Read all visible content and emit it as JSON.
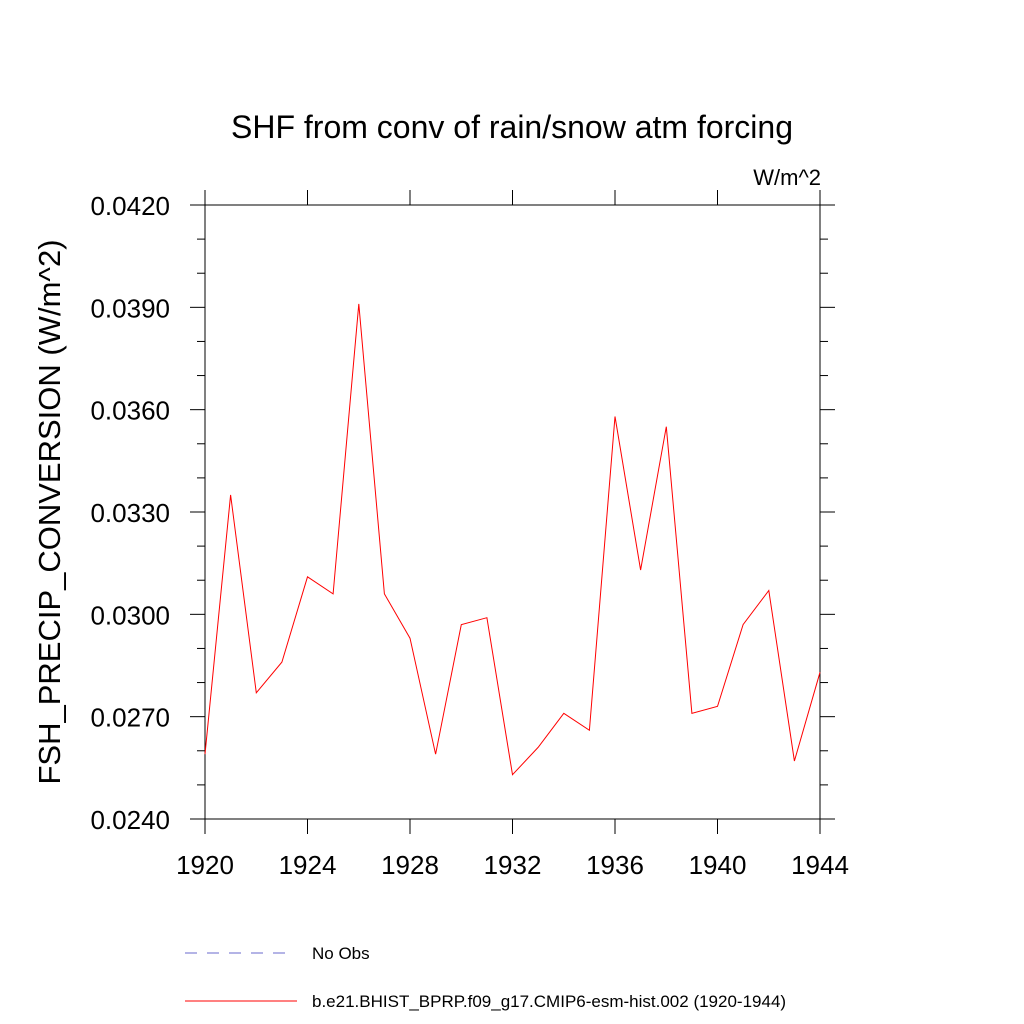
{
  "chart_data": {
    "type": "line",
    "title": "SHF from conv of rain/snow atm forcing",
    "units_label": "W/m^2",
    "ylabel": "FSH_PRECIP_CONVERSION  (W/m^2)",
    "xlabel": "",
    "xlim": [
      1920,
      1944
    ],
    "ylim": [
      0.024,
      0.042
    ],
    "x_ticks": [
      "1920",
      "1924",
      "1928",
      "1932",
      "1936",
      "1940",
      "1944"
    ],
    "y_ticks": [
      "0.0240",
      "0.0270",
      "0.0300",
      "0.0330",
      "0.0360",
      "0.0390",
      "0.0420"
    ],
    "grid": false,
    "legend_position": "bottom",
    "colors": {
      "model": "#ff0000",
      "obs": "#6a6acd"
    },
    "x": [
      1920,
      1921,
      1922,
      1923,
      1924,
      1925,
      1926,
      1927,
      1928,
      1929,
      1930,
      1931,
      1932,
      1933,
      1934,
      1935,
      1936,
      1937,
      1938,
      1939,
      1940,
      1941,
      1942,
      1943,
      1944
    ],
    "series": [
      {
        "name": "b.e21.BHIST_BPRP.f09_g17.CMIP6-esm-hist.002 (1920-1944)",
        "values": [
          0.0259,
          0.0335,
          0.0277,
          0.0286,
          0.0311,
          0.0306,
          0.0391,
          0.0306,
          0.0293,
          0.0259,
          0.0297,
          0.0299,
          0.0253,
          0.0261,
          0.0271,
          0.0266,
          0.0358,
          0.0313,
          0.0355,
          0.0271,
          0.0273,
          0.0297,
          0.0307,
          0.0257,
          0.0283
        ]
      }
    ],
    "legend": [
      {
        "label": "No Obs",
        "style": "dashed"
      },
      {
        "label": "b.e21.BHIST_BPRP.f09_g17.CMIP6-esm-hist.002 (1920-1944)",
        "style": "solid"
      }
    ]
  }
}
